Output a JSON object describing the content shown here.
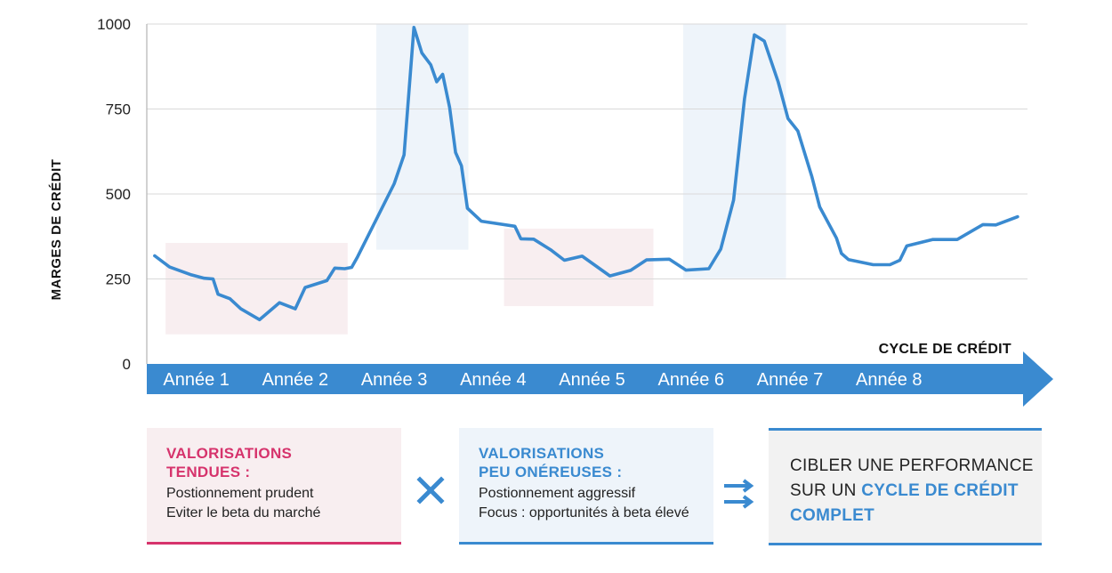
{
  "chart_data": {
    "type": "line",
    "ylabel": "MARGES DE CRÉDIT",
    "xlabel": "CYCLE DE CRÉDIT",
    "ylim": [
      0,
      1000
    ],
    "yticks": [
      "0",
      "250",
      "500",
      "750",
      "1000"
    ],
    "xlim": [
      0,
      8.9
    ],
    "categories": [
      "Année 1",
      "Année 2",
      "Année 3",
      "Année 4",
      "Année 5",
      "Année 6",
      "Année 7",
      "Année 8"
    ],
    "series": [
      {
        "name": "Marges de crédit",
        "color": "#3a8ad0",
        "points": [
          [
            0.08,
            318
          ],
          [
            0.23,
            285
          ],
          [
            0.45,
            262
          ],
          [
            0.58,
            252
          ],
          [
            0.67,
            250
          ],
          [
            0.72,
            205
          ],
          [
            0.84,
            192
          ],
          [
            0.95,
            162
          ],
          [
            1.14,
            130
          ],
          [
            1.34,
            180
          ],
          [
            1.5,
            162
          ],
          [
            1.6,
            225
          ],
          [
            1.82,
            245
          ],
          [
            1.9,
            282
          ],
          [
            2.0,
            280
          ],
          [
            2.07,
            284
          ],
          [
            2.13,
            315
          ],
          [
            2.5,
            530
          ],
          [
            2.6,
            615
          ],
          [
            2.7,
            990
          ],
          [
            2.78,
            915
          ],
          [
            2.87,
            880
          ],
          [
            2.93,
            830
          ],
          [
            2.99,
            852
          ],
          [
            3.06,
            755
          ],
          [
            3.12,
            622
          ],
          [
            3.18,
            583
          ],
          [
            3.24,
            458
          ],
          [
            3.38,
            420
          ],
          [
            3.72,
            405
          ],
          [
            3.78,
            368
          ],
          [
            3.91,
            367
          ],
          [
            4.08,
            336
          ],
          [
            4.22,
            305
          ],
          [
            4.4,
            317
          ],
          [
            4.68,
            259
          ],
          [
            4.89,
            275
          ],
          [
            5.05,
            306
          ],
          [
            5.28,
            308
          ],
          [
            5.45,
            276
          ],
          [
            5.68,
            280
          ],
          [
            5.8,
            338
          ],
          [
            5.93,
            482
          ],
          [
            6.04,
            780
          ],
          [
            6.14,
            968
          ],
          [
            6.24,
            950
          ],
          [
            6.38,
            830
          ],
          [
            6.48,
            722
          ],
          [
            6.58,
            685
          ],
          [
            6.72,
            552
          ],
          [
            6.8,
            462
          ],
          [
            6.97,
            370
          ],
          [
            7.02,
            325
          ],
          [
            7.09,
            307
          ],
          [
            7.34,
            292
          ],
          [
            7.51,
            292
          ],
          [
            7.61,
            305
          ],
          [
            7.68,
            347
          ],
          [
            7.94,
            366
          ],
          [
            8.19,
            366
          ],
          [
            8.45,
            410
          ],
          [
            8.58,
            409
          ],
          [
            8.8,
            433
          ]
        ]
      }
    ],
    "highlights": [
      {
        "type": "tendues",
        "x": [
          0.19,
          2.03
        ],
        "y": [
          87,
          356
        ],
        "color": "#f8eef0"
      },
      {
        "type": "onereuses",
        "x": [
          2.32,
          3.25
        ],
        "y": [
          336,
          1000
        ],
        "color": "#eef4fa"
      },
      {
        "type": "tendues",
        "x": [
          3.61,
          5.12
        ],
        "y": [
          170,
          398
        ],
        "color": "#f8eef0"
      },
      {
        "type": "onereuses",
        "x": [
          5.42,
          6.46
        ],
        "y": [
          252,
          1000
        ],
        "color": "#eef4fa"
      }
    ],
    "arrow_color": "#3a8ad0"
  },
  "legend": {
    "tendues": {
      "title_1": "VALORISATIONS",
      "title_2": "TENDUES :",
      "line_1": "Postionnement prudent",
      "line_2": "Eviter le beta du marché",
      "accent": "#d6336c"
    },
    "operator_times": "×",
    "onereuses": {
      "title_1": "VALORISATIONS",
      "title_2": "PEU ONÉREUSES :",
      "line_1": "Postionnement aggressif",
      "line_2": "Focus : opportunités à beta élevé",
      "accent": "#3a8ad0"
    },
    "operator_implies": "⇉",
    "conclusion": {
      "line_1": "CIBLER UNE PERFORMANCE",
      "line_2_plain": "SUR UN ",
      "line_2_bold": "CYCLE DE CRÉDIT",
      "line_3_bold": "COMPLET"
    }
  }
}
